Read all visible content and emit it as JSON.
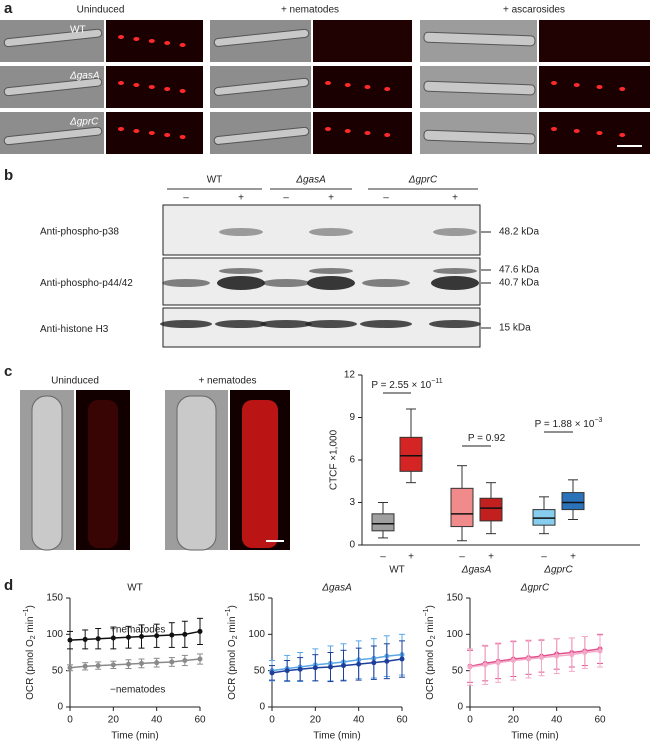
{
  "panel_labels": [
    "a",
    "b",
    "c",
    "d"
  ],
  "panel_a": {
    "columns": [
      "Uninduced",
      "+ nematodes",
      "+ ascarosides"
    ],
    "rows": [
      "WT",
      "ΔgasA",
      "ΔgprC"
    ]
  },
  "panel_b": {
    "groups": [
      "WT",
      "ΔgasA",
      "ΔgprC"
    ],
    "lanes": [
      "–",
      "+",
      "–",
      "+",
      "–",
      "+"
    ],
    "antibodies": [
      "Anti-phospho-p38",
      "Anti-phospho-p44/42",
      "Anti-histone H3"
    ],
    "sizes": [
      "48.2 kDa",
      "47.6 kDa",
      "40.7 kDa",
      "15 kDa"
    ]
  },
  "panel_c": {
    "columns": [
      "Uninduced",
      "+ nematodes"
    ]
  },
  "chart_data": [
    {
      "type": "box",
      "ylabel": "CTCF ×1,000",
      "ylim": [
        0,
        12
      ],
      "yticks": [
        0,
        3,
        6,
        9,
        12
      ],
      "categories": [
        "–",
        "+",
        "–",
        "+",
        "–",
        "+"
      ],
      "groups": [
        "WT",
        "ΔgasA",
        "ΔgprC"
      ],
      "colors": [
        "#a0a0a0",
        "#d42424",
        "#f18a8a",
        "#c21f1f",
        "#86cdee",
        "#2a73b8"
      ],
      "min": [
        0.5,
        4.4,
        0.3,
        0.8,
        0.8,
        1.8
      ],
      "q1": [
        1.0,
        5.2,
        1.3,
        1.7,
        1.4,
        2.5
      ],
      "median": [
        1.5,
        6.3,
        2.2,
        2.6,
        1.9,
        3.0
      ],
      "q3": [
        2.2,
        7.6,
        4.0,
        3.3,
        2.5,
        3.7
      ],
      "max": [
        3.0,
        9.6,
        5.6,
        4.4,
        3.4,
        4.6
      ],
      "annotations": [
        {
          "prefix": "P = 2.55 × 10",
          "exp": "−11"
        },
        {
          "prefix": "P = 0.92"
        },
        {
          "prefix": "P = 1.88 × 10",
          "exp": "−3"
        }
      ]
    },
    {
      "type": "line",
      "title": "WT",
      "xlabel": "Time (min)",
      "ylabel": {
        "main": "OCR (pmol O",
        "sub": "2",
        "mid": " min",
        "sup": "−1",
        "end": ")"
      },
      "xlim": [
        0,
        60
      ],
      "ylim": [
        0,
        150
      ],
      "xticks": [
        0,
        20,
        40,
        60
      ],
      "yticks": [
        0,
        50,
        100,
        150
      ],
      "x": [
        0,
        7,
        13,
        20,
        27,
        33,
        40,
        47,
        53,
        60
      ],
      "series": [
        {
          "name": "+nematodes",
          "color": "#111111",
          "values": [
            92,
            93,
            94,
            95,
            96,
            97,
            98,
            99,
            100,
            104
          ],
          "errors": [
            12,
            13,
            14,
            15,
            15,
            16,
            16,
            17,
            18,
            18
          ]
        },
        {
          "name": "−nematodes",
          "color": "#8a8a8a",
          "values": [
            54,
            56,
            57,
            58,
            59,
            60,
            61,
            62,
            64,
            66
          ],
          "errors": [
            4,
            5,
            5,
            5,
            6,
            6,
            6,
            6,
            7,
            7
          ]
        }
      ]
    },
    {
      "type": "line",
      "title": "ΔgasA",
      "xlabel": "Time (min)",
      "ylabel": {
        "main": "OCR (pmol O",
        "sub": "2",
        "mid": " min",
        "sup": "−1",
        "end": ")"
      },
      "xlim": [
        0,
        60
      ],
      "ylim": [
        0,
        150
      ],
      "xticks": [
        0,
        20,
        40,
        60
      ],
      "yticks": [
        0,
        50,
        100,
        150
      ],
      "x": [
        0,
        7,
        13,
        20,
        27,
        33,
        40,
        47,
        53,
        60
      ],
      "series": [
        {
          "color": "#5aa7e6",
          "values": [
            50,
            53,
            55,
            58,
            60,
            62,
            65,
            67,
            70,
            72
          ],
          "errors": [
            14,
            18,
            20,
            22,
            24,
            25,
            26,
            27,
            28,
            28
          ]
        },
        {
          "color": "#1d3f9a",
          "values": [
            47,
            50,
            52,
            54,
            55,
            57,
            59,
            61,
            63,
            66
          ],
          "errors": [
            10,
            14,
            16,
            18,
            20,
            21,
            22,
            23,
            24,
            25
          ]
        }
      ]
    },
    {
      "type": "line",
      "title": "ΔgprC",
      "xlabel": "Time (min)",
      "ylabel": {
        "main": "OCR (pmol O",
        "sub": "2",
        "mid": " min",
        "sup": "−1",
        "end": ")"
      },
      "xlim": [
        0,
        60
      ],
      "ylim": [
        0,
        150
      ],
      "xticks": [
        0,
        20,
        40,
        60
      ],
      "yticks": [
        0,
        50,
        100,
        150
      ],
      "x": [
        0,
        7,
        13,
        20,
        27,
        33,
        40,
        47,
        53,
        60
      ],
      "series": [
        {
          "color": "#e0508c",
          "values": [
            56,
            60,
            63,
            66,
            68,
            70,
            73,
            75,
            77,
            80
          ],
          "errors": [
            22,
            24,
            24,
            24,
            23,
            22,
            21,
            20,
            20,
            20
          ]
        },
        {
          "color": "#f4a8c8",
          "values": [
            55,
            58,
            61,
            64,
            66,
            68,
            70,
            72,
            75,
            77
          ],
          "errors": [
            25,
            27,
            27,
            27,
            26,
            25,
            24,
            23,
            22,
            22
          ]
        }
      ]
    }
  ]
}
